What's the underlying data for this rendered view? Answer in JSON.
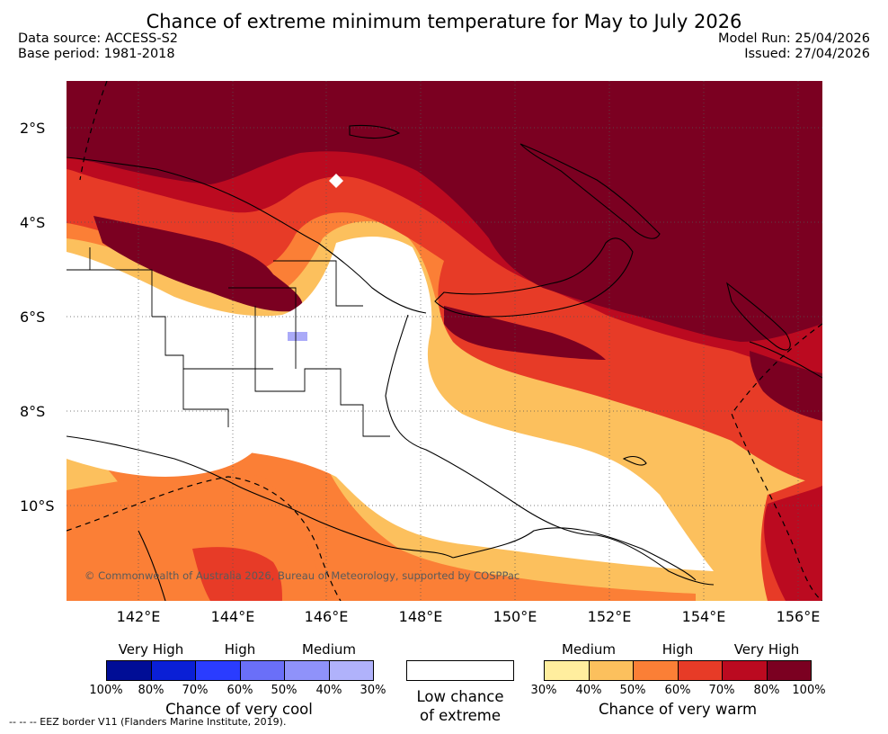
{
  "header": {
    "title": "Chance of extreme minimum temperature for May to July 2026",
    "data_source": "Data source: ACCESS-S2",
    "base_period": "Base period: 1981-2018",
    "model_run": "Model Run: 25/04/2026",
    "issued": "Issued: 27/04/2026"
  },
  "map": {
    "copyright": "© Commonwealth of Australia 2026, Bureau of Meteorology, supported by COSPPac",
    "lat_labels": [
      "2°S",
      "4°S",
      "6°S",
      "8°S",
      "10°S"
    ],
    "lon_labels": [
      "142°E",
      "144°E",
      "146°E",
      "148°E",
      "150°E",
      "152°E",
      "154°E",
      "156°E"
    ]
  },
  "legend": {
    "cool": {
      "category_labels": [
        "Very High",
        "High",
        "Medium"
      ],
      "tick_labels": [
        "100%",
        "80%",
        "70%",
        "60%",
        "50%",
        "40%",
        "30%"
      ],
      "colors": [
        "#000d96",
        "#0a1fd6",
        "#2a3cff",
        "#6a6ff8",
        "#8f92fa",
        "#b0b2fb"
      ],
      "label": "Chance of very cool"
    },
    "neutral": {
      "label_line1": "Low chance",
      "label_line2": "of extreme"
    },
    "warm": {
      "category_labels": [
        "Medium",
        "High",
        "Very High"
      ],
      "tick_labels": [
        "30%",
        "40%",
        "50%",
        "60%",
        "70%",
        "80%",
        "100%"
      ],
      "colors": [
        "#ffee9e",
        "#fcc05d",
        "#fb7f36",
        "#e73b27",
        "#bb0a20",
        "#7b0021"
      ],
      "label": "Chance of very warm"
    }
  },
  "footer": {
    "eez_note": "--  --  -- EEZ border V11 (Flanders Marine Institute, 2019)."
  }
}
